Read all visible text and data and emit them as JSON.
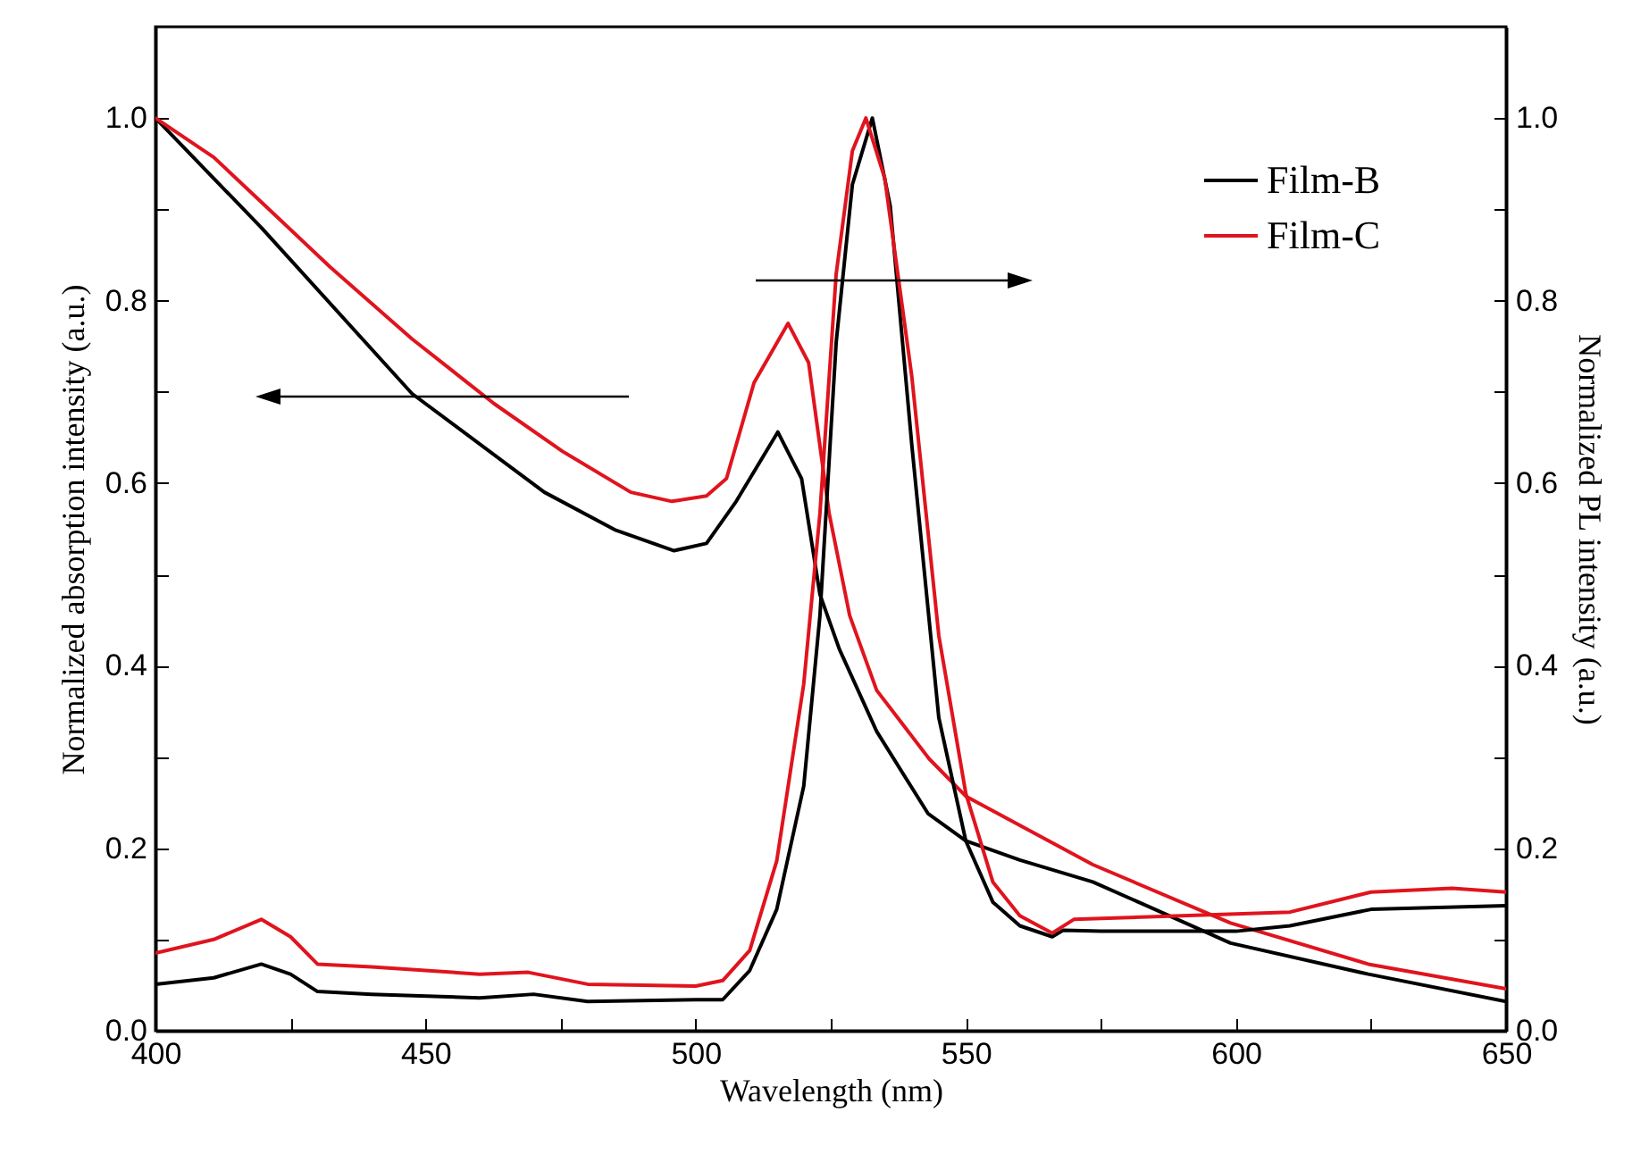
{
  "chart_data": {
    "type": "line",
    "xlabel": "Wavelength (nm)",
    "ylabel": "Normalized absorption intensity (a.u.)",
    "y2label": "Normalized PL intensity (a.u.)",
    "xlim": [
      400,
      650
    ],
    "xticks": [
      400,
      {
        "value": 425,
        "label": null
      },
      450,
      {
        "value": 475,
        "label": null
      },
      500,
      {
        "value": 525,
        "label": null
      },
      550,
      {
        "value": 575,
        "label": null
      },
      600,
      {
        "value": 625,
        "label": null
      },
      650
    ],
    "ylim": [
      0,
      1.1
    ],
    "yticks": [
      {
        "value": 0,
        "label": "0.0"
      },
      {
        "value": 0.1,
        "label": null
      },
      0.2,
      {
        "value": 0.3,
        "label": null
      },
      0.4,
      {
        "value": 0.5,
        "label": null
      },
      0.6,
      {
        "value": 0.7,
        "label": null
      },
      0.8,
      {
        "value": 0.9,
        "label": null
      },
      {
        "value": 1,
        "label": "1.0"
      }
    ],
    "y2lim": [
      0,
      1.1
    ],
    "y2ticks": [
      {
        "value": 0,
        "label": "0.0"
      },
      {
        "value": 0.1,
        "label": null
      },
      0.2,
      {
        "value": 0.3,
        "label": null
      },
      0.4,
      {
        "value": 0.5,
        "label": null
      },
      0.6,
      {
        "value": 0.7,
        "label": null
      },
      0.8,
      {
        "value": 0.9,
        "label": null
      },
      {
        "value": 1,
        "label": "1.0"
      }
    ],
    "grid": false,
    "legend": "top right",
    "marker": "none",
    "line_style": "solid",
    "series": [
      {
        "name": "Film-B",
        "color": "#000000",
        "x": [
          400,
          419.6,
          447.5,
          472,
          485,
          496,
          502,
          507.5,
          515.2,
          519.6,
          523,
          526.6,
          533.5,
          543,
          550,
          560,
          573.5,
          585,
          599,
          624.5,
          650
        ],
        "values": [
          1.0,
          0.88,
          0.698,
          0.59,
          0.549,
          0.526,
          0.534,
          0.58,
          0.656,
          0.605,
          0.478,
          0.418,
          0.328,
          0.238,
          0.208,
          0.187,
          0.163,
          0.133,
          0.096,
          0.062,
          0.032
        ]
      },
      {
        "name": "Film-C",
        "color": "#e0141e",
        "x": [
          400,
          410.8,
          419.6,
          432.3,
          447.5,
          462.7,
          475.3,
          488,
          495.6,
          502,
          505.7,
          510.8,
          517.1,
          520.9,
          524.7,
          528.5,
          533.5,
          543.2,
          550,
          573.5,
          599,
          624.5,
          650
        ],
        "values": [
          1.0,
          0.957,
          0.908,
          0.837,
          0.758,
          0.687,
          0.635,
          0.59,
          0.58,
          0.586,
          0.605,
          0.71,
          0.775,
          0.732,
          0.567,
          0.455,
          0.373,
          0.298,
          0.257,
          0.182,
          0.118,
          0.073,
          0.046
        ]
      },
      {
        "color": "#000000",
        "axis": "y2",
        "x": [
          400,
          410.8,
          419.6,
          425,
          430,
          440,
          460,
          470,
          480,
          500,
          505,
          510,
          515,
          520,
          523,
          526,
          529,
          532.7,
          536,
          540,
          545,
          550,
          555,
          560,
          566,
          568,
          575,
          600,
          610,
          625,
          650
        ],
        "values": [
          0.051,
          0.058,
          0.073,
          0.062,
          0.043,
          0.04,
          0.036,
          0.04,
          0.032,
          0.034,
          0.034,
          0.066,
          0.133,
          0.268,
          0.455,
          0.754,
          0.927,
          1.0,
          0.904,
          0.642,
          0.343,
          0.208,
          0.141,
          0.115,
          0.103,
          0.11,
          0.109,
          0.109,
          0.115,
          0.133,
          0.137
        ]
      },
      {
        "color": "#e0141e",
        "axis": "y2",
        "x": [
          400,
          410.8,
          419.6,
          425,
          430,
          440,
          460,
          469,
          480,
          500,
          505,
          510,
          515,
          520,
          523,
          526,
          529,
          531.5,
          535,
          540,
          545,
          550,
          555,
          560,
          566,
          570,
          590,
          610,
          625,
          640,
          650
        ],
        "values": [
          0.085,
          0.1,
          0.122,
          0.103,
          0.073,
          0.07,
          0.062,
          0.064,
          0.051,
          0.049,
          0.055,
          0.088,
          0.186,
          0.38,
          0.567,
          0.829,
          0.964,
          1.0,
          0.934,
          0.717,
          0.433,
          0.26,
          0.163,
          0.126,
          0.107,
          0.122,
          0.126,
          0.13,
          0.152,
          0.156,
          0.152
        ]
      }
    ]
  }
}
